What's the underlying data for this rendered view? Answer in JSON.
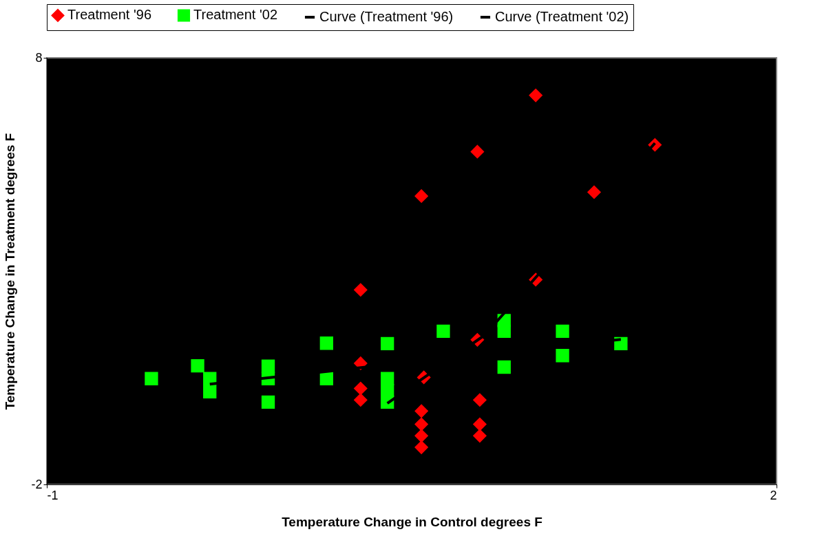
{
  "chart_data": {
    "type": "scatter",
    "xlabel": "Temperature Change in Control degrees F",
    "ylabel": "Temperature Change in Treatment degrees F",
    "xlim": [
      -1,
      2
    ],
    "xticks": [
      -1,
      2
    ],
    "ylim": [
      -2,
      8
    ],
    "yticks": [
      -2,
      8
    ],
    "grid": false,
    "legend": "top",
    "series": [
      {
        "name": "Treatment '96",
        "marker": "diamond",
        "color": "#ff0000",
        "x": [
          1.01,
          0.77,
          1.5,
          0.54,
          1.25,
          1.01,
          0.29,
          0.77,
          0.29,
          0.55,
          0.29,
          0.29,
          0.78,
          0.54,
          0.54,
          0.78,
          0.54,
          0.78,
          0.54
        ],
        "values": [
          7.12,
          5.8,
          5.96,
          4.76,
          4.85,
          2.8,
          2.56,
          1.39,
          0.84,
          0.51,
          0.25,
          -0.02,
          -0.02,
          -0.28,
          -0.59,
          -0.59,
          -0.86,
          -0.86,
          -1.13
        ]
      },
      {
        "name": "Treatment '02",
        "marker": "square",
        "color": "#00ff00",
        "x": [
          -0.57,
          -0.38,
          -0.33,
          -0.33,
          -0.09,
          -0.09,
          -0.09,
          0.15,
          0.15,
          0.4,
          0.4,
          0.4,
          0.4,
          0.63,
          0.88,
          0.88,
          0.88,
          1.12,
          1.12,
          1.36
        ],
        "values": [
          0.48,
          0.78,
          0.48,
          0.17,
          0.77,
          0.48,
          -0.07,
          1.31,
          0.48,
          1.3,
          0.48,
          0.2,
          -0.07,
          1.59,
          1.84,
          1.59,
          0.75,
          1.59,
          1.02,
          1.3
        ]
      },
      {
        "name": "Curve (Treatment '96)",
        "type": "line",
        "marker": "none",
        "color": "#000000",
        "x": [
          0.4,
          0.8,
          1.5
        ],
        "values": [
          -0.1,
          1.5,
          6.0
        ]
      },
      {
        "name": "Curve (Treatment '02)",
        "type": "line",
        "marker": "none",
        "color": "#000000",
        "x": [
          -0.33,
          -0.09,
          1.36
        ],
        "values": [
          0.35,
          0.5,
          1.4
        ]
      }
    ]
  }
}
